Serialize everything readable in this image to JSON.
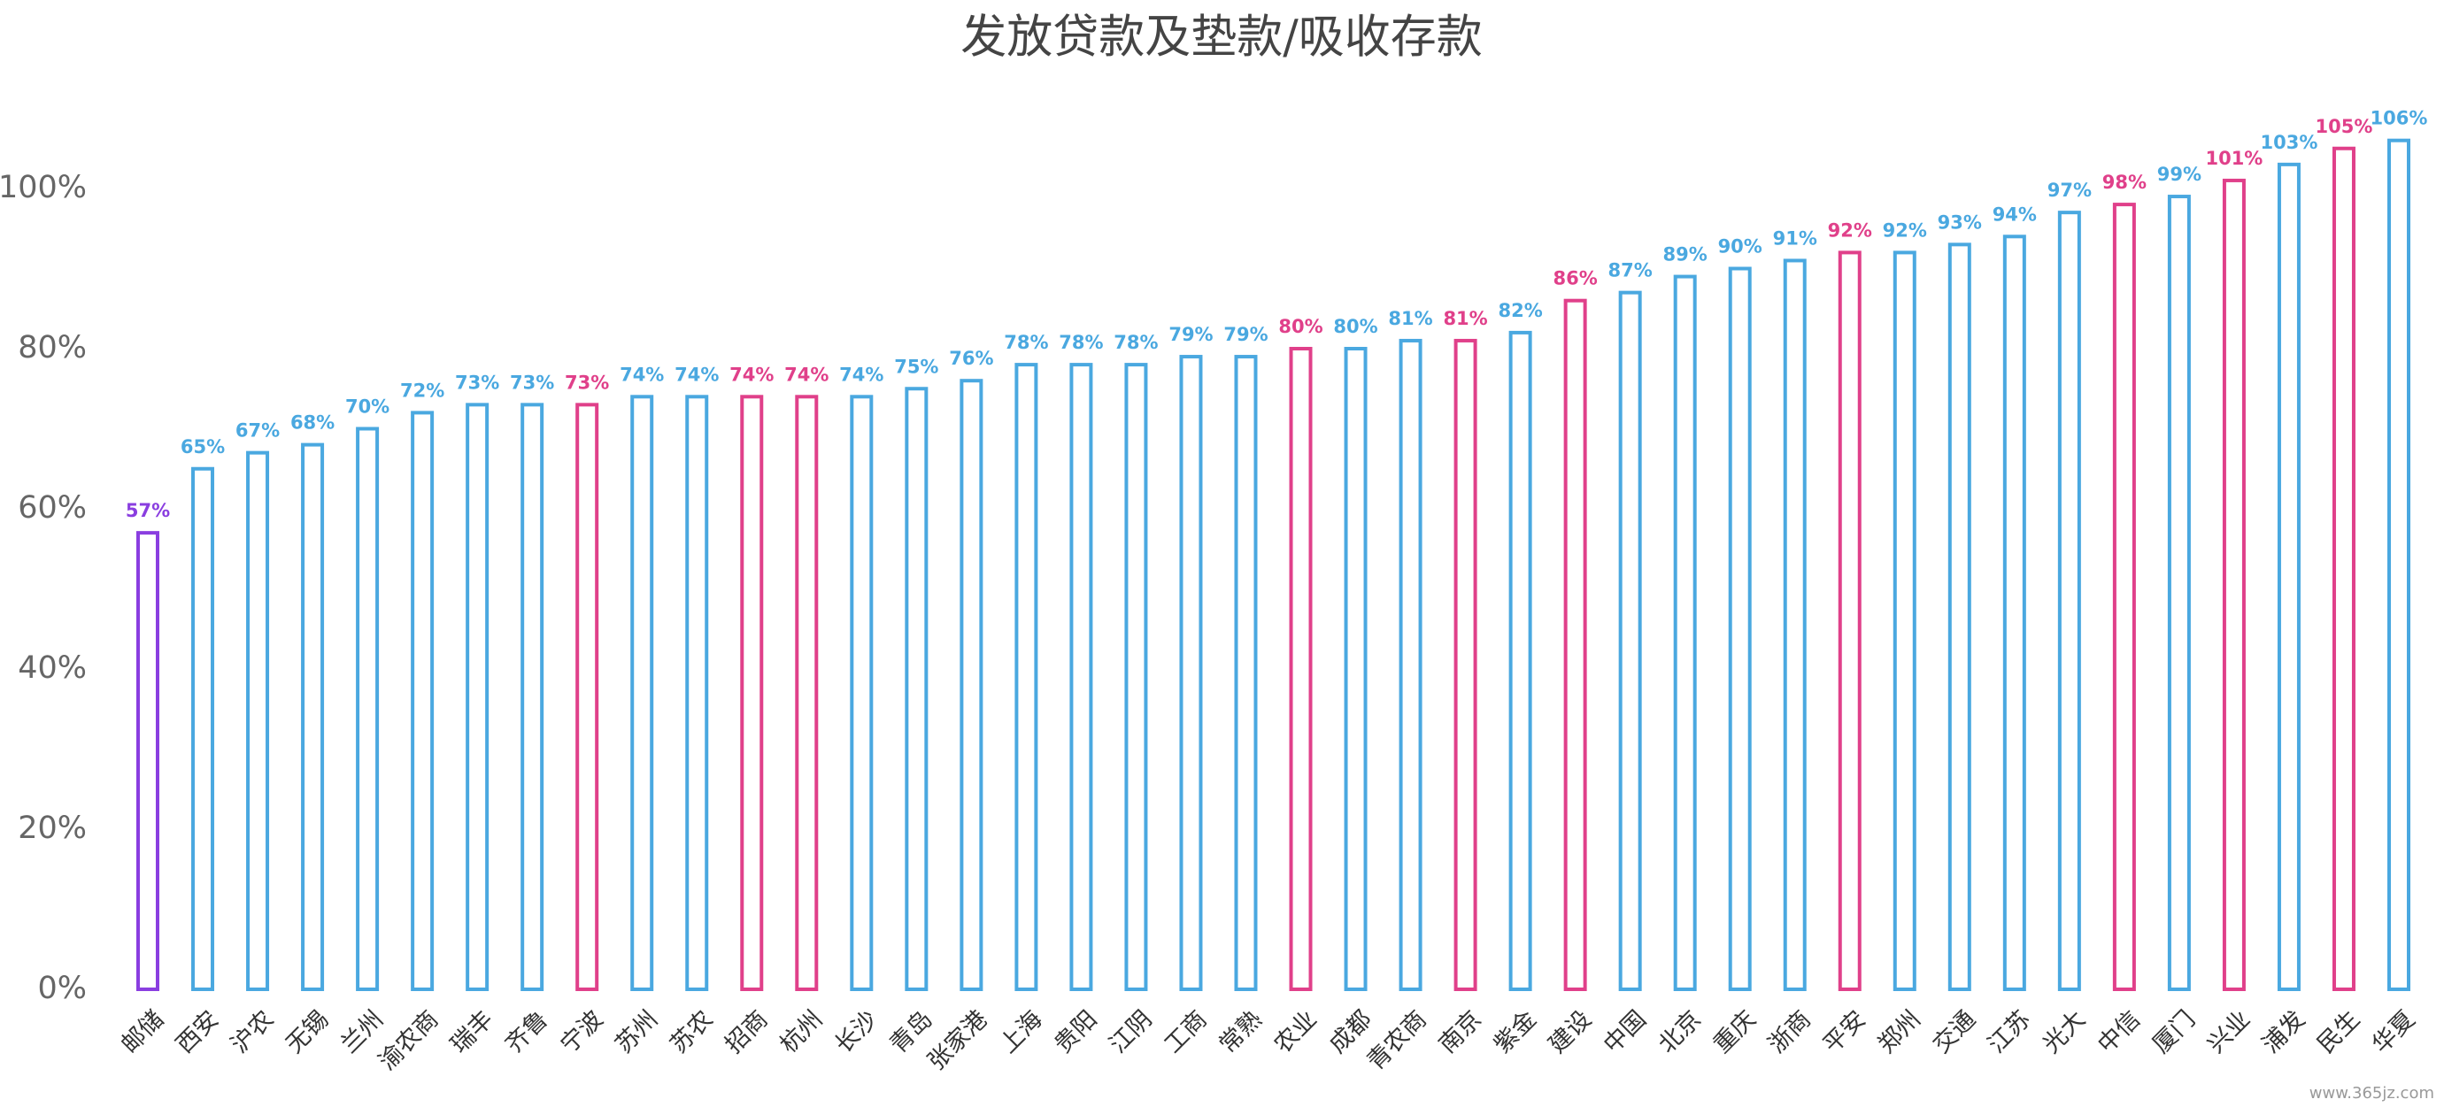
{
  "chart_data": {
    "type": "bar",
    "title": "发放贷款及垫款/吸收存款",
    "categories": [
      "邮储",
      "西安",
      "沪农",
      "无锡",
      "兰州",
      "渝农商",
      "瑞丰",
      "齐鲁",
      "宁波",
      "苏州",
      "苏农",
      "招商",
      "杭州",
      "长沙",
      "青岛",
      "张家港",
      "上海",
      "贵阳",
      "江阴",
      "工商",
      "常熟",
      "农业",
      "成都",
      "青农商",
      "南京",
      "紫金",
      "建设",
      "中国",
      "北京",
      "重庆",
      "浙商",
      "平安",
      "郑州",
      "交通",
      "江苏",
      "光大",
      "中信",
      "厦门",
      "兴业",
      "浦发",
      "民生",
      "华夏"
    ],
    "values": [
      57,
      65,
      67,
      68,
      70,
      72,
      73,
      73,
      73,
      74,
      74,
      74,
      74,
      74,
      75,
      76,
      78,
      78,
      78,
      79,
      79,
      80,
      80,
      81,
      81,
      82,
      86,
      87,
      89,
      90,
      91,
      92,
      92,
      93,
      94,
      97,
      98,
      99,
      101,
      103,
      105,
      106
    ],
    "value_labels": [
      "57%",
      "65%",
      "67%",
      "68%",
      "70%",
      "72%",
      "73%",
      "73%",
      "73%",
      "74%",
      "74%",
      "74%",
      "74%",
      "74%",
      "75%",
      "76%",
      "78%",
      "78%",
      "78%",
      "79%",
      "79%",
      "80%",
      "80%",
      "81%",
      "81%",
      "82%",
      "86%",
      "87%",
      "89%",
      "90%",
      "91%",
      "92%",
      "92%",
      "93%",
      "94%",
      "97%",
      "98%",
      "99%",
      "101%",
      "103%",
      "105%",
      "106%"
    ],
    "colors": [
      "#8a3ee0",
      "#4aa8e0",
      "#4aa8e0",
      "#4aa8e0",
      "#4aa8e0",
      "#4aa8e0",
      "#4aa8e0",
      "#4aa8e0",
      "#e0408a",
      "#4aa8e0",
      "#4aa8e0",
      "#e0408a",
      "#e0408a",
      "#4aa8e0",
      "#4aa8e0",
      "#4aa8e0",
      "#4aa8e0",
      "#4aa8e0",
      "#4aa8e0",
      "#4aa8e0",
      "#4aa8e0",
      "#e0408a",
      "#4aa8e0",
      "#4aa8e0",
      "#e0408a",
      "#4aa8e0",
      "#e0408a",
      "#4aa8e0",
      "#4aa8e0",
      "#4aa8e0",
      "#4aa8e0",
      "#e0408a",
      "#4aa8e0",
      "#4aa8e0",
      "#4aa8e0",
      "#4aa8e0",
      "#e0408a",
      "#4aa8e0",
      "#e0408a",
      "#4aa8e0",
      "#e0408a",
      "#4aa8e0"
    ],
    "ylim": [
      0,
      110
    ],
    "yticks": [
      {
        "value": 0,
        "label": "0%"
      },
      {
        "value": 20,
        "label": "20%"
      },
      {
        "value": 40,
        "label": "40%"
      },
      {
        "value": 60,
        "label": "60%"
      },
      {
        "value": 80,
        "label": "80%"
      },
      {
        "value": 100,
        "label": "100%"
      }
    ],
    "grid": false,
    "watermark": "www.365jz.com"
  }
}
